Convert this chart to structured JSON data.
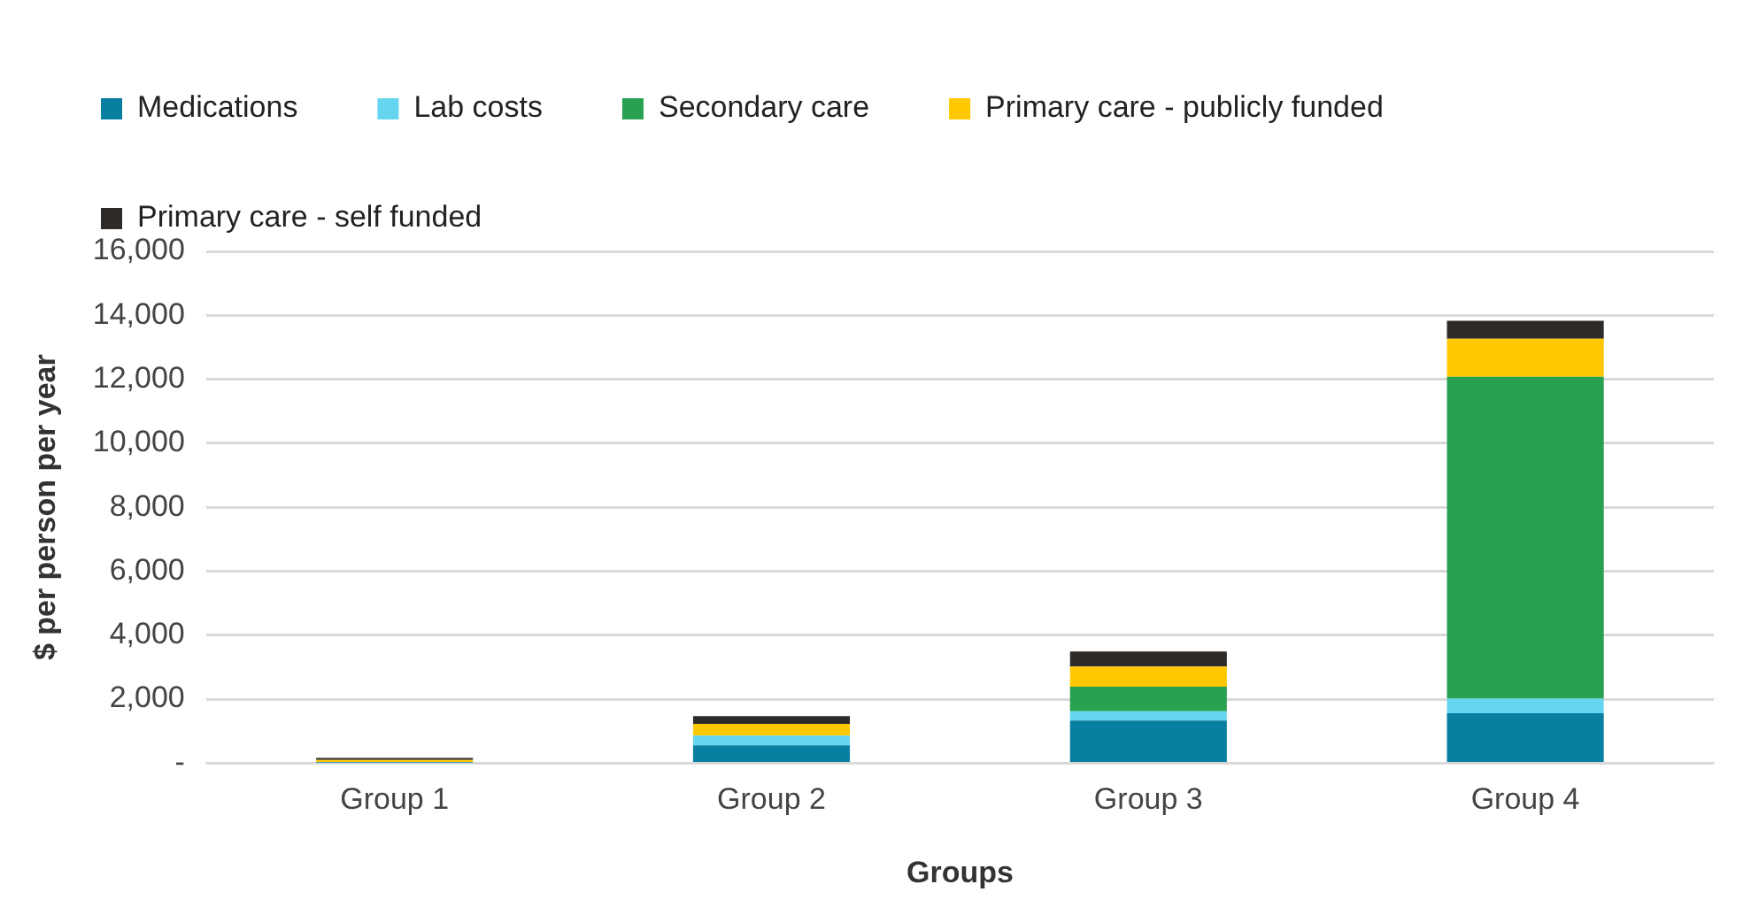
{
  "chart_data": {
    "type": "bar",
    "stacked": true,
    "xlabel": "Groups",
    "ylabel": "$ per person per year",
    "categories": [
      "Group 1",
      "Group 2",
      "Group 3",
      "Group 4"
    ],
    "series": [
      {
        "name": "Medications",
        "color": "#087fa1",
        "values": [
          20,
          560,
          1330,
          1560
        ]
      },
      {
        "name": "Lab costs",
        "color": "#66d6f0",
        "values": [
          10,
          300,
          290,
          460
        ]
      },
      {
        "name": "Secondary care",
        "color": "#28a150",
        "values": [
          0,
          0,
          770,
          10060
        ]
      },
      {
        "name": "Primary care - publicly funded",
        "color": "#ffc800",
        "values": [
          70,
          370,
          630,
          1190
        ]
      },
      {
        "name": "Primary care - self funded",
        "color": "#2e2a27",
        "values": [
          60,
          240,
          470,
          560
        ]
      }
    ],
    "ylim": [
      0,
      16000
    ],
    "yticks": [
      {
        "value": 0,
        "label": "-"
      },
      {
        "value": 2000,
        "label": "2,000"
      },
      {
        "value": 4000,
        "label": "4,000"
      },
      {
        "value": 6000,
        "label": "6,000"
      },
      {
        "value": 8000,
        "label": "8,000"
      },
      {
        "value": 10000,
        "label": "10,000"
      },
      {
        "value": 12000,
        "label": "12,000"
      },
      {
        "value": 14000,
        "label": "14,000"
      },
      {
        "value": 16000,
        "label": "16,000"
      }
    ],
    "grid": "y",
    "legend": "top left"
  }
}
